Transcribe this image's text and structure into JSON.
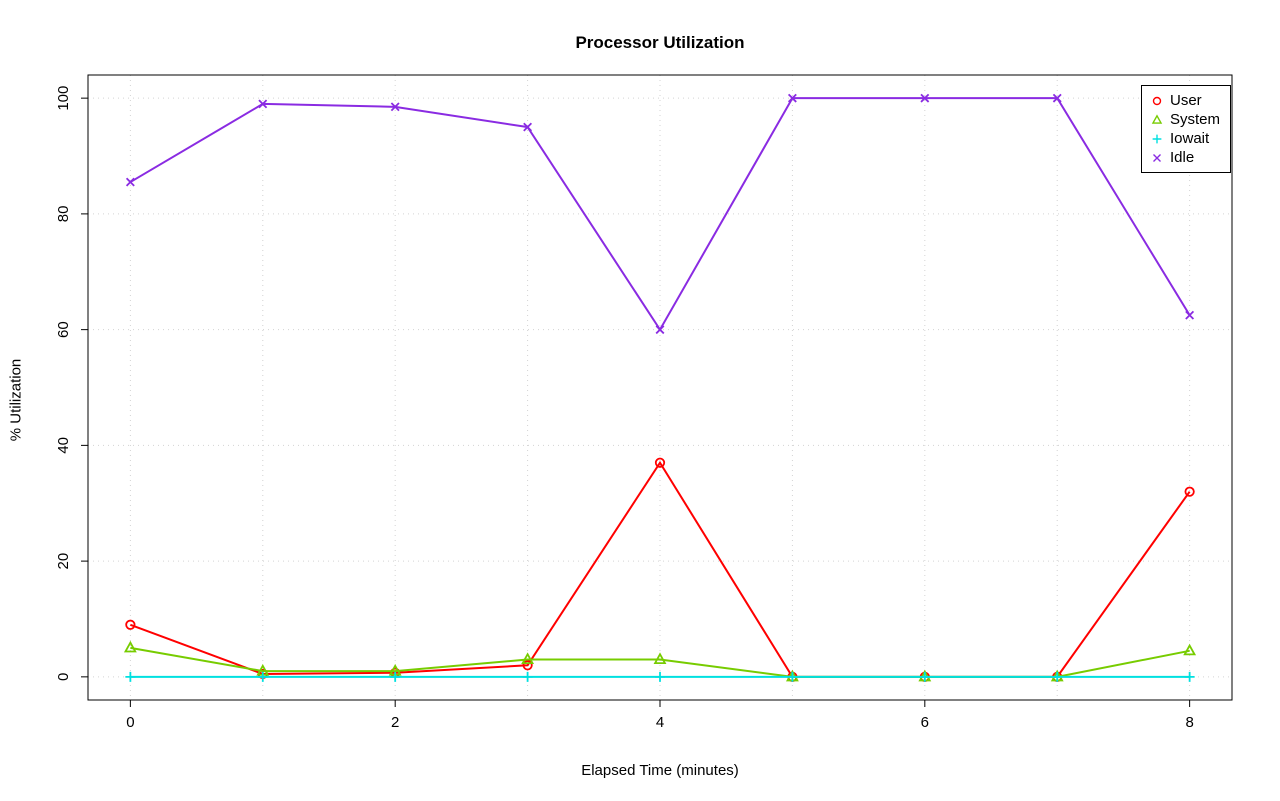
{
  "chart_data": {
    "type": "line",
    "title": "Processor Utilization",
    "xlabel": "Elapsed Time (minutes)",
    "ylabel": "% Utilization",
    "x": [
      0,
      1,
      2,
      3,
      4,
      5,
      6,
      7,
      8
    ],
    "xlim": [
      0,
      8
    ],
    "ylim": [
      0,
      100
    ],
    "xticks": [
      0,
      2,
      4,
      6,
      8
    ],
    "yticks": [
      0,
      20,
      40,
      60,
      80,
      100
    ],
    "grid_x": [
      0,
      1,
      2,
      3,
      4,
      5,
      6,
      7,
      8
    ],
    "grid": true,
    "grid_color": "#d3d3d3",
    "axis_color": "#000000",
    "legend_position": "top-right",
    "series": [
      {
        "name": "User",
        "color": "#ff0000",
        "marker": "circle",
        "values": [
          9,
          0.5,
          0.7,
          2,
          37,
          0,
          0,
          0,
          32
        ]
      },
      {
        "name": "System",
        "color": "#77cc00",
        "marker": "triangle",
        "values": [
          5,
          1,
          1,
          3,
          3,
          0,
          0,
          0,
          4.5
        ]
      },
      {
        "name": "Iowait",
        "color": "#00e0e0",
        "marker": "plus",
        "values": [
          0,
          0,
          0,
          0,
          0,
          0,
          0,
          0,
          0
        ]
      },
      {
        "name": "Idle",
        "color": "#8a2be2",
        "marker": "x",
        "values": [
          85.5,
          99,
          98.5,
          95,
          60,
          100,
          100,
          100,
          62.5
        ]
      }
    ]
  }
}
